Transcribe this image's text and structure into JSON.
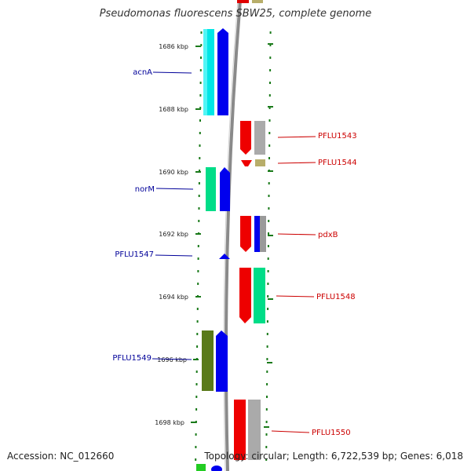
{
  "title": "Pseudomonas fluorescens SBW25, complete genome",
  "footer": {
    "accession": "Accession: NC_012660",
    "topology": "Topology: circular; Length: 6,722,539 bp; Genes: 6,018"
  },
  "colors": {
    "background": "#ffffff",
    "backbone": "#888888",
    "ticks": "#1a7a1a",
    "left_label": "#000099",
    "right_label": "#cc0000"
  },
  "scale_labels": [
    "1686 kbp",
    "1688 kbp",
    "1690 kbp",
    "1692 kbp",
    "1694 kbp",
    "1696 kbp",
    "1698 kbp"
  ],
  "left_genes": [
    {
      "label": "acnA"
    },
    {
      "label": "norM"
    },
    {
      "label": "PFLU1547"
    },
    {
      "label": "PFLU1549"
    }
  ],
  "right_genes": [
    {
      "label": "PFLU1543"
    },
    {
      "label": "PFLU1544"
    },
    {
      "label": "pdxB"
    },
    {
      "label": "PFLU1548"
    },
    {
      "label": "PFLU1550"
    }
  ]
}
